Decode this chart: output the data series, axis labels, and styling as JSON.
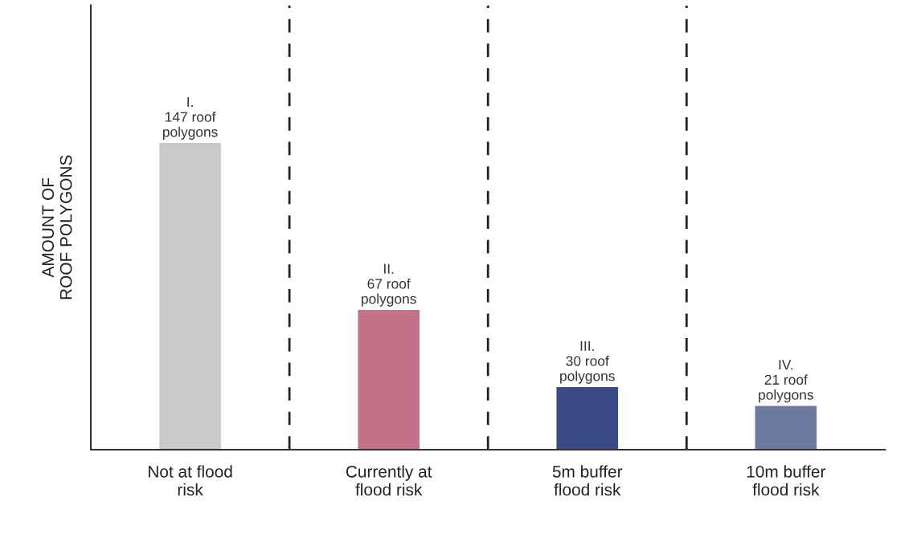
{
  "chart_data": {
    "type": "bar",
    "ylabel": "AMOUNT OF\nROOF POLYGONS",
    "categories": [
      "Not at flood\nrisk",
      "Currently at\nflood risk",
      "5m buffer\nflood risk",
      "10m buffer\nflood risk"
    ],
    "values": [
      147,
      67,
      30,
      21
    ],
    "colors": [
      "#c9c8ca",
      "#c4728a",
      "#3b4a86",
      "#6b7a9d"
    ],
    "value_labels": [
      "I.\n147 roof\npolygons",
      "II.\n67 roof\npolygons",
      "III.\n30 roof\npolygons",
      "IV.\n21 roof\npolygons"
    ],
    "ylim": [
      0,
      213
    ],
    "tick_labels": "x",
    "grid": false
  }
}
